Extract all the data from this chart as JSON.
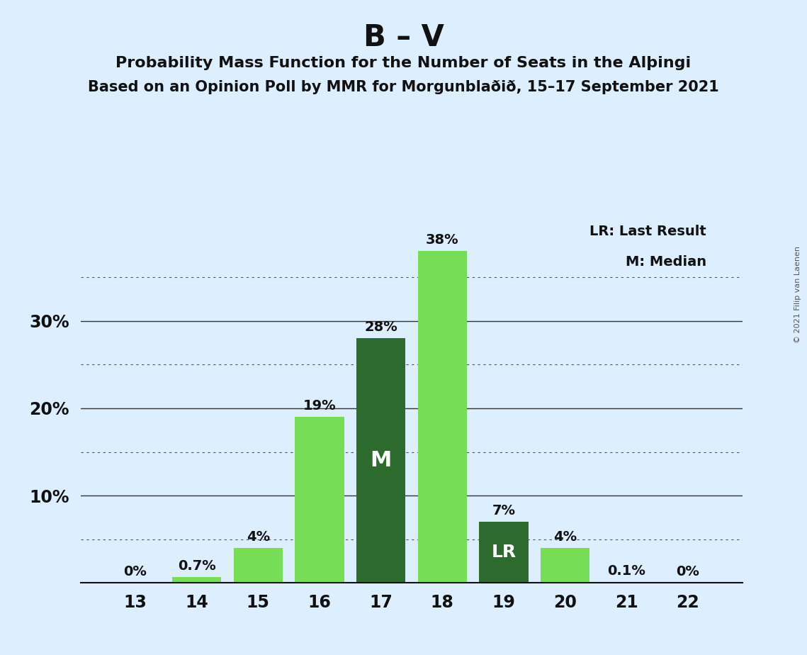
{
  "title_main": "B – V",
  "title_sub1": "Probability Mass Function for the Number of Seats in the Alþingi",
  "title_sub2": "Based on an Opinion Poll by MMR for Morgunblaðið, 15–17 September 2021",
  "copyright": "© 2021 Filip van Laenen",
  "categories": [
    13,
    14,
    15,
    16,
    17,
    18,
    19,
    20,
    21,
    22
  ],
  "values": [
    0.0,
    0.7,
    4.0,
    19.0,
    28.0,
    38.0,
    7.0,
    4.0,
    0.1,
    0.0
  ],
  "labels": [
    "0%",
    "0.7%",
    "4%",
    "19%",
    "28%",
    "38%",
    "7%",
    "4%",
    "0.1%",
    "0%"
  ],
  "median_bar": 17,
  "lr_bar": 19,
  "background_color": "#ddeeff",
  "bar_light_green": "#77dd55",
  "bar_dark_green": "#2d6a2d",
  "text_color": "#111111",
  "grid_solid_color": "#333333",
  "grid_dot_color": "#555555",
  "ylim": [
    0,
    42
  ],
  "solid_gridlines": [
    10,
    20,
    30
  ],
  "dotted_gridlines": [
    5,
    15,
    25,
    35
  ]
}
